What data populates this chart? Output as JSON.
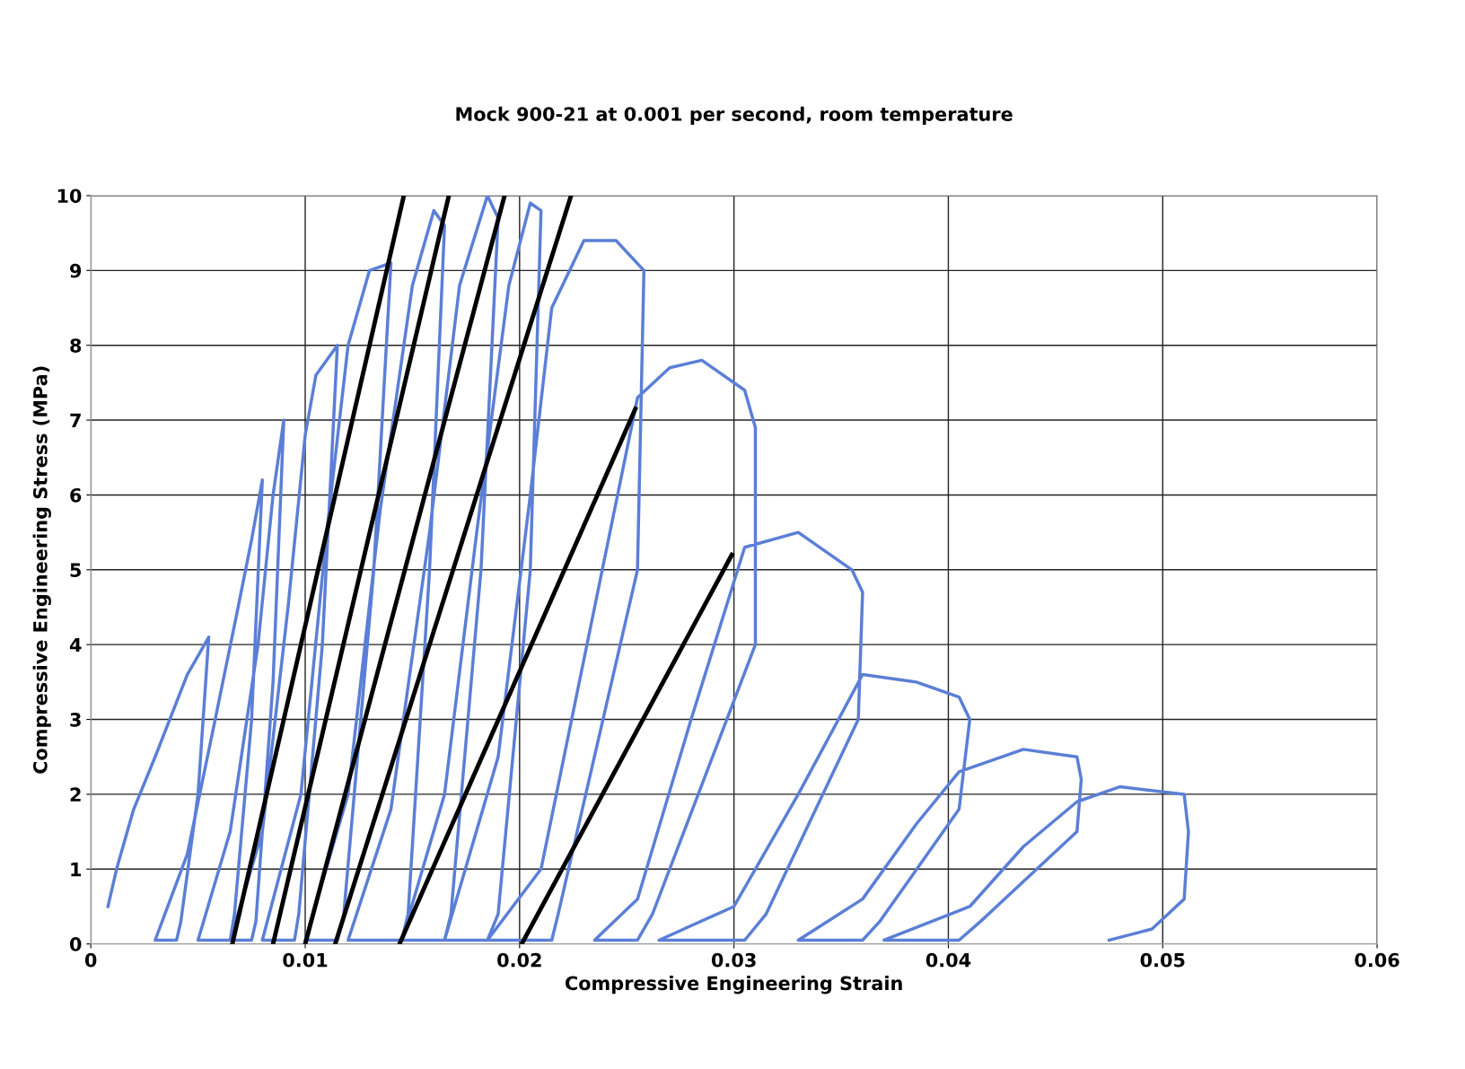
{
  "chart_data": {
    "type": "line",
    "title": "Mock 900-21 at 0.001 per second, room temperature",
    "xlabel": "Compressive Engineering Strain",
    "ylabel": "Compressive Engineering Stress (MPa)",
    "xlim": [
      0,
      0.06
    ],
    "xticks": [
      0,
      0.01,
      0.02,
      0.03,
      0.04,
      0.05,
      0.06
    ],
    "ylim": [
      0,
      10
    ],
    "yticks": [
      0,
      1,
      2,
      3,
      4,
      5,
      6,
      7,
      8,
      9,
      10
    ],
    "grid": true,
    "marker": "none",
    "line_style": "solid",
    "series": [
      {
        "color": "#5b7fd6",
        "x": [
          0.0008,
          0.0012,
          0.002,
          0.003,
          0.0045,
          0.0055,
          0.005,
          0.0042,
          0.004,
          0.003,
          0.0045,
          0.0058,
          0.0068,
          0.0075,
          0.008,
          0.0075,
          0.0067,
          0.0065,
          0.005,
          0.0065,
          0.0078,
          0.0085,
          0.009,
          0.0085,
          0.0077,
          0.0075,
          0.0065,
          0.008,
          0.0092,
          0.01,
          0.0105,
          0.0115,
          0.0108,
          0.0097,
          0.0095,
          0.008,
          0.0098,
          0.011,
          0.012,
          0.013,
          0.014,
          0.0132,
          0.0118,
          0.0115,
          0.01,
          0.012,
          0.0135,
          0.015,
          0.016,
          0.0165,
          0.0158,
          0.0148,
          0.0145,
          0.012,
          0.014,
          0.0158,
          0.0172,
          0.0185,
          0.019,
          0.0182,
          0.0168,
          0.0165,
          0.0145,
          0.0165,
          0.018,
          0.0195,
          0.0205,
          0.021,
          0.0205,
          0.019,
          0.0185,
          0.0165,
          0.019,
          0.0205,
          0.0215,
          0.023,
          0.0245,
          0.0258,
          0.0255,
          0.0218,
          0.0215,
          0.0185,
          0.021,
          0.0235,
          0.0255,
          0.027,
          0.0285,
          0.0305,
          0.031,
          0.031,
          0.0262,
          0.0255,
          0.0235,
          0.0255,
          0.028,
          0.0305,
          0.033,
          0.0355,
          0.036,
          0.0358,
          0.0315,
          0.0305,
          0.0265,
          0.03,
          0.033,
          0.036,
          0.0385,
          0.0405,
          0.041,
          0.0405,
          0.0368,
          0.036,
          0.033,
          0.036,
          0.0385,
          0.0405,
          0.0435,
          0.046,
          0.0462,
          0.046,
          0.0415,
          0.0405,
          0.037,
          0.041,
          0.0435,
          0.046,
          0.048,
          0.051,
          0.0512,
          0.051,
          0.0495,
          0.0475
        ],
        "values": [
          0.5,
          1.0,
          1.8,
          2.5,
          3.6,
          4.1,
          2.0,
          0.3,
          0.05,
          0.05,
          1.2,
          3.0,
          4.4,
          5.4,
          6.2,
          3.0,
          0.4,
          0.05,
          0.05,
          1.5,
          4.0,
          6.0,
          7.0,
          3.5,
          0.3,
          0.05,
          0.05,
          1.5,
          4.5,
          6.8,
          7.6,
          8.0,
          4.0,
          0.4,
          0.05,
          0.05,
          2.0,
          5.5,
          8.0,
          9.0,
          9.1,
          5.0,
          0.4,
          0.05,
          0.05,
          2.0,
          5.8,
          8.8,
          9.8,
          9.6,
          5.0,
          0.4,
          0.05,
          0.05,
          1.8,
          5.5,
          8.8,
          10.0,
          9.7,
          5.0,
          0.4,
          0.05,
          0.05,
          2.0,
          5.5,
          8.8,
          9.9,
          9.8,
          5.0,
          0.4,
          0.05,
          0.05,
          2.5,
          6.0,
          8.5,
          9.4,
          9.4,
          9.0,
          5.0,
          0.4,
          0.05,
          0.05,
          1.0,
          4.5,
          7.3,
          7.7,
          7.8,
          7.4,
          6.9,
          4.0,
          0.4,
          0.05,
          0.05,
          0.6,
          3.0,
          5.3,
          5.5,
          5.0,
          4.7,
          3.0,
          0.4,
          0.05,
          0.05,
          0.5,
          2.0,
          3.6,
          3.5,
          3.3,
          3.0,
          1.8,
          0.3,
          0.05,
          0.05,
          0.6,
          1.6,
          2.3,
          2.6,
          2.5,
          2.2,
          1.5,
          0.3,
          0.05,
          0.05,
          0.5,
          1.3,
          1.9,
          2.1,
          2.0,
          1.5,
          0.6,
          0.2,
          0.05
        ]
      },
      {
        "color": "#000000",
        "x": [
          0.0066,
          0.0146
        ],
        "values": [
          0,
          10
        ]
      },
      {
        "color": "#000000",
        "x": [
          0.0085,
          0.0167
        ],
        "values": [
          0,
          10
        ]
      },
      {
        "color": "#000000",
        "x": [
          0.01,
          0.0193
        ],
        "values": [
          0,
          10
        ]
      },
      {
        "color": "#000000",
        "x": [
          0.0114,
          0.0224
        ],
        "values": [
          0,
          10
        ]
      },
      {
        "color": "#000000",
        "x": [
          0.0144,
          0.0254
        ],
        "values": [
          0,
          7.15
        ]
      },
      {
        "color": "#000000",
        "x": [
          0.0201,
          0.0299
        ],
        "values": [
          0,
          5.2
        ]
      }
    ]
  }
}
